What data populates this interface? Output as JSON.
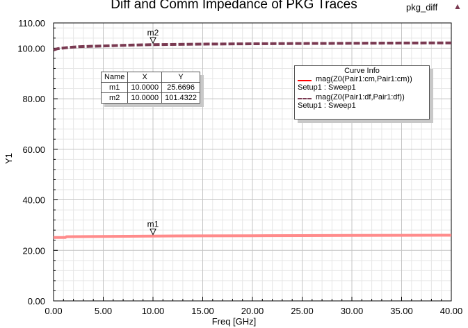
{
  "header": {
    "title": "Diff and Comm Impedance of PKG Traces",
    "plot_name": "pkg_diff",
    "plot_icon": "triangle-icon"
  },
  "chart_data": {
    "type": "line",
    "title": "Diff and Comm Impedance of PKG Traces",
    "xlabel": "Freq [GHz]",
    "ylabel": "Y1",
    "xlim": [
      0,
      40
    ],
    "ylim": [
      0,
      110
    ],
    "x_ticks": [
      "0.00",
      "5.00",
      "10.00",
      "15.00",
      "20.00",
      "25.00",
      "30.00",
      "35.00",
      "40.00"
    ],
    "y_ticks": [
      "0.00",
      "20.00",
      "40.00",
      "60.00",
      "80.00",
      "100.00",
      "110.00"
    ],
    "grid": true,
    "series": [
      {
        "name": "mag(Z0(Pair1:cm,Pair1:cm))",
        "setup": "Setup1 : Sweep1",
        "color": "#ff8b8b",
        "style": "solid",
        "x": [
          0,
          1.2,
          1.3,
          5,
          10,
          15,
          20,
          25,
          30,
          35,
          40
        ],
        "y": [
          25.1,
          25.1,
          25.4,
          25.5,
          25.67,
          25.75,
          25.8,
          25.85,
          25.9,
          25.95,
          26.0
        ]
      },
      {
        "name": "mag(Z0(Pair1:df,Pair1:df))",
        "setup": "Setup1 : Sweep1",
        "color": "#7a3a52",
        "style": "dashed",
        "x": [
          0,
          0.4,
          0.8,
          1.5,
          2.5,
          5,
          7.5,
          10,
          15,
          20,
          25,
          30,
          35,
          40
        ],
        "y": [
          99.3,
          99.8,
          100.0,
          100.3,
          100.6,
          100.9,
          101.2,
          101.43,
          101.6,
          101.75,
          101.85,
          101.95,
          102.05,
          102.1
        ]
      }
    ],
    "markers": [
      {
        "name": "m1",
        "x": 10,
        "y": 25.6696
      },
      {
        "name": "m2",
        "x": 10,
        "y": 101.4322
      }
    ],
    "marker_table": {
      "headers": [
        "Name",
        "X",
        "Y"
      ],
      "rows": [
        [
          "m1",
          "10.0000",
          "25.6696"
        ],
        [
          "m2",
          "10.0000",
          "101.4322"
        ]
      ]
    },
    "legend": {
      "title": "Curve Info",
      "position": "top-right"
    }
  }
}
